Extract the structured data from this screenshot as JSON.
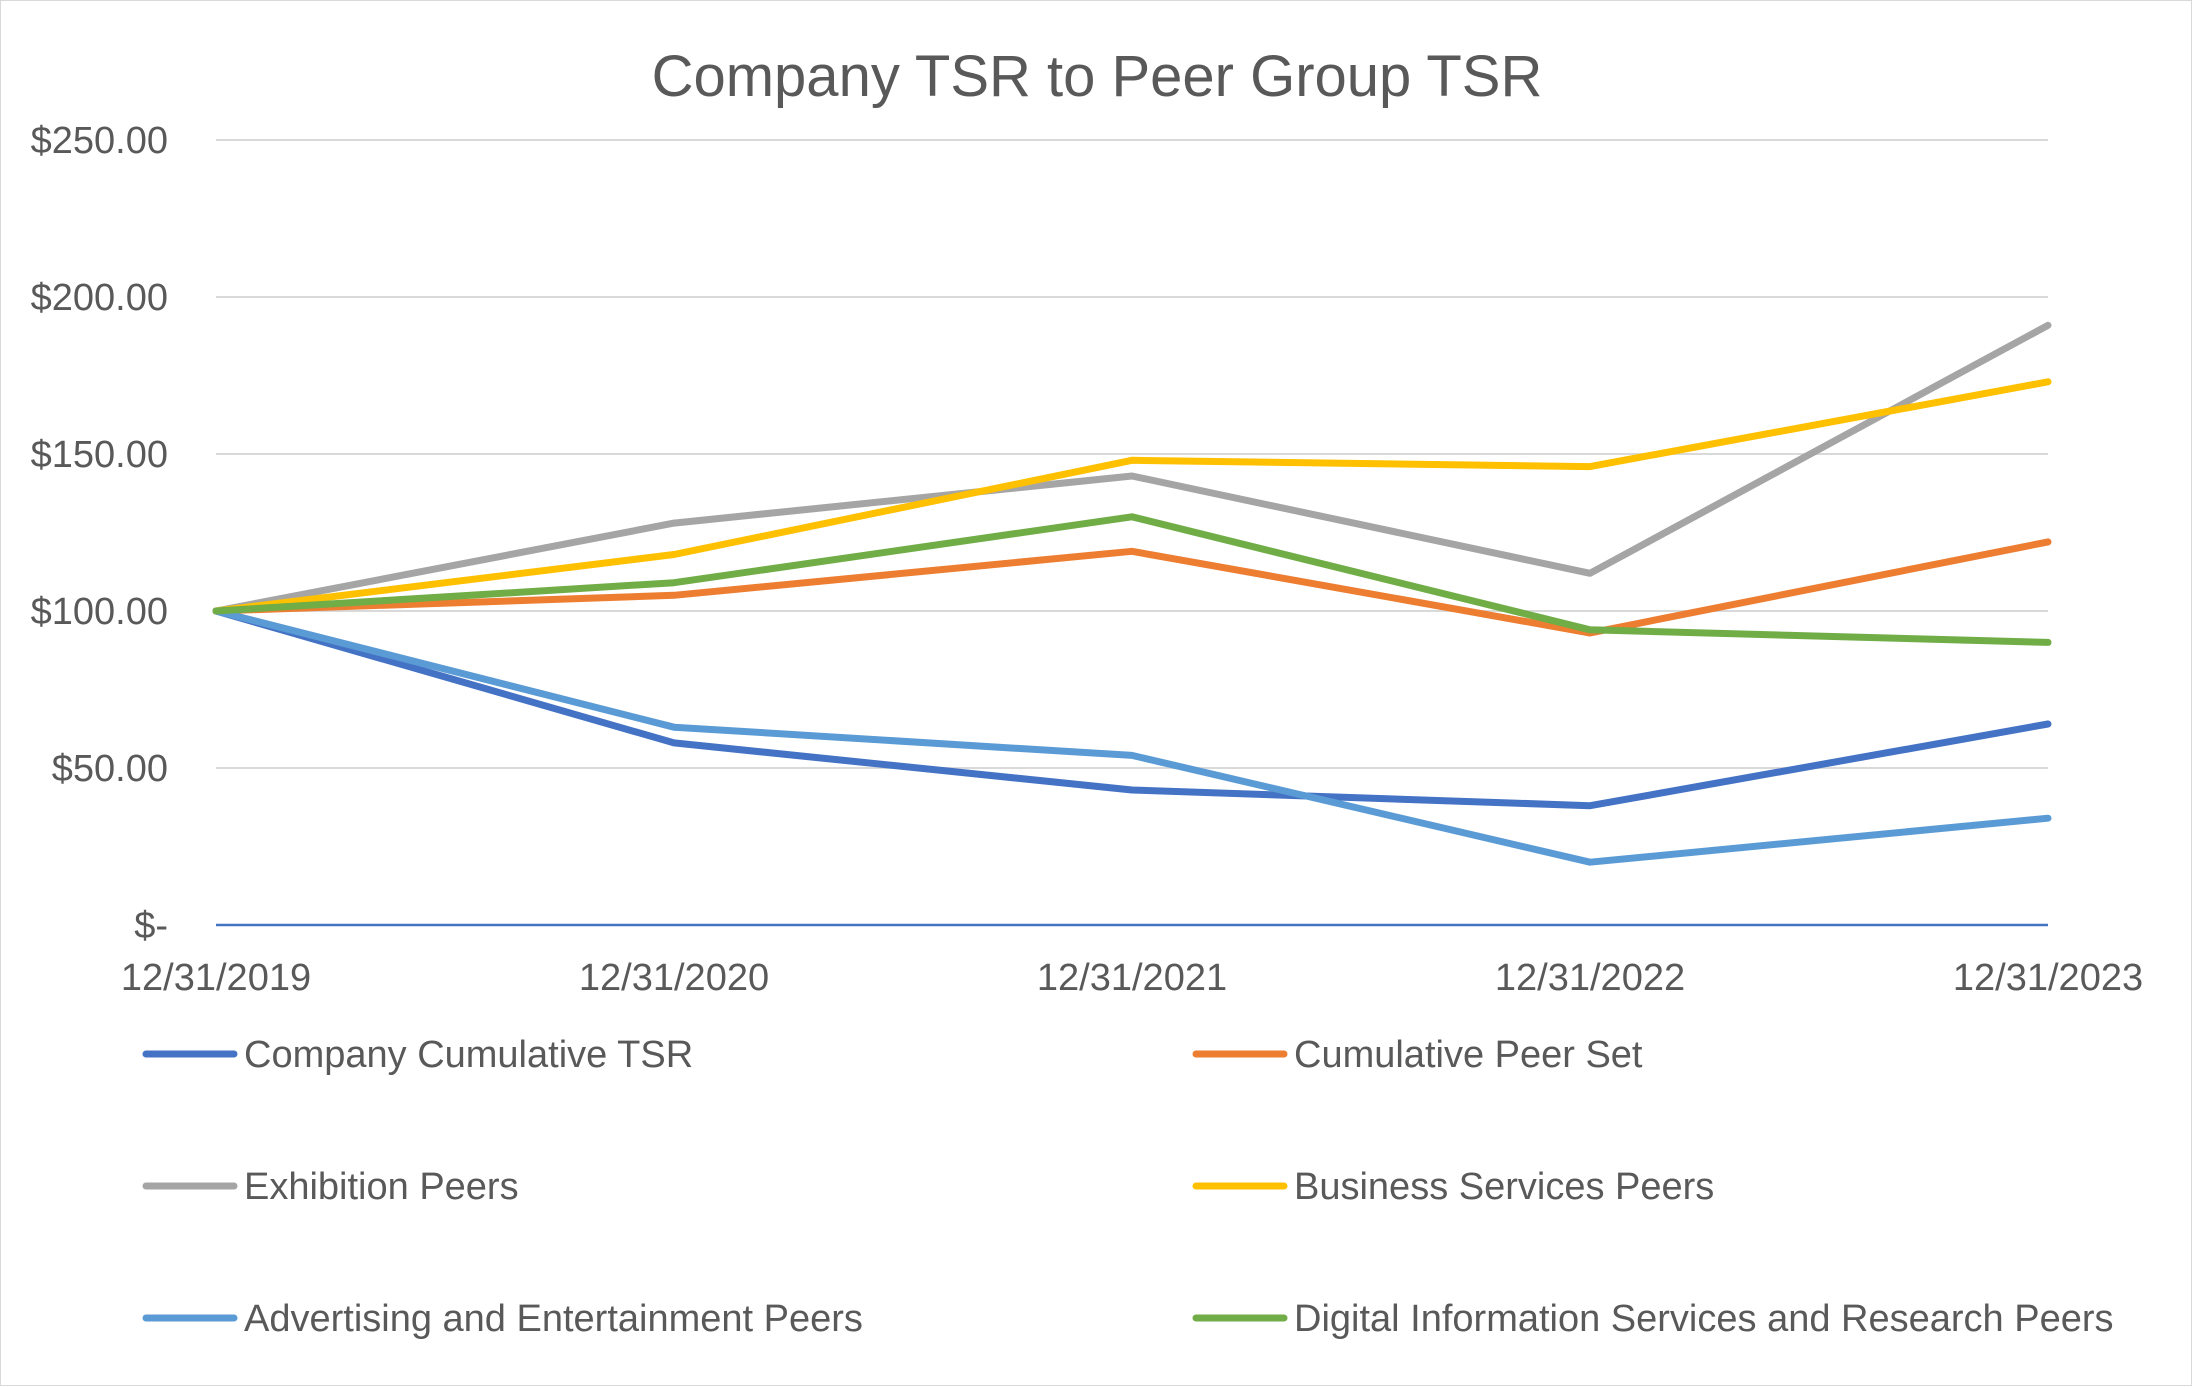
{
  "chart_data": {
    "type": "line",
    "title": "Company TSR to Peer Group TSR",
    "xlabel": "",
    "ylabel": "",
    "categories": [
      "12/31/2019",
      "12/31/2020",
      "12/31/2021",
      "12/31/2022",
      "12/31/2023"
    ],
    "ylim": [
      0,
      250
    ],
    "yticks": [
      0,
      50,
      100,
      150,
      200,
      250
    ],
    "ytick_labels": [
      "$-",
      "$50.00",
      "$100.00",
      "$150.00",
      "$200.00",
      "$250.00"
    ],
    "grid": true,
    "legend_position": "bottom",
    "series": [
      {
        "name": "Company Cumulative TSR",
        "color": "#4472C4",
        "values": [
          100,
          58,
          43,
          38,
          64
        ]
      },
      {
        "name": "Cumulative Peer Set",
        "color": "#ED7D31",
        "values": [
          100,
          105,
          119,
          93,
          122
        ]
      },
      {
        "name": "Exhibition Peers",
        "color": "#A5A5A5",
        "values": [
          100,
          128,
          143,
          112,
          191
        ]
      },
      {
        "name": "Business Services Peers",
        "color": "#FFC000",
        "values": [
          100,
          118,
          148,
          146,
          173
        ]
      },
      {
        "name": "Advertising and Entertainment Peers",
        "color": "#5B9BD5",
        "values": [
          100,
          63,
          54,
          20,
          34
        ]
      },
      {
        "name": "Digital Information Services and Research Peers",
        "color": "#70AD47",
        "values": [
          100,
          109,
          130,
          94,
          90
        ]
      }
    ]
  }
}
